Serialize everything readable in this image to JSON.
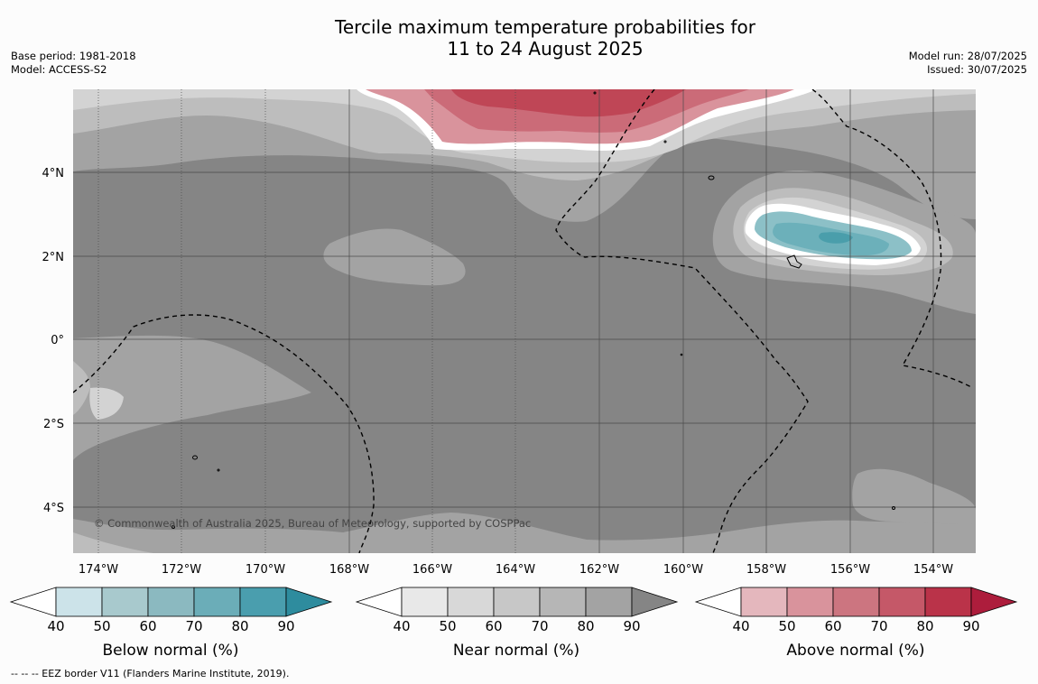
{
  "header": {
    "title_line1": "Tercile maximum temperature probabilities for",
    "title_line2": "11 to 24 August 2025",
    "base_period": "Base period: 1981-2018",
    "model": "Model: ACCESS-S2",
    "model_run": "Model run: 28/07/2025",
    "issued": "Issued: 30/07/2025"
  },
  "map": {
    "lat_labels": [
      "4°N",
      "2°N",
      "0°",
      "2°S",
      "4°S"
    ],
    "lon_labels": [
      "174°W",
      "172°W",
      "170°W",
      "168°W",
      "166°W",
      "164°W",
      "162°W",
      "160°W",
      "158°W",
      "156°W",
      "154°W"
    ],
    "copyright": "© Commonwealth of Australia 2025, Bureau of Meteorology, supported by COSPPac",
    "colors": {
      "near_90": "#858585",
      "near_80": "#a3a3a3",
      "near_70": "#bdbdbd",
      "near_60": "#d3d3d3",
      "above_50": "#d9939c",
      "above_60": "#cb6b78",
      "above_70": "#bf4656",
      "below_60": "#8cc0c7",
      "below_70": "#6cb0ba",
      "below_80": "#4a9eab"
    }
  },
  "legends": [
    {
      "label": "Below normal (%)",
      "ticks": [
        "40",
        "50",
        "60",
        "70",
        "80",
        "90"
      ],
      "colors": [
        "#cce3e9",
        "#a8c9cd",
        "#8bb9c0",
        "#6badb8",
        "#4a9eae",
        "#2e8c9e"
      ]
    },
    {
      "label": "Near normal (%)",
      "ticks": [
        "40",
        "50",
        "60",
        "70",
        "80",
        "90"
      ],
      "colors": [
        "#e8e8e8",
        "#d8d8d8",
        "#c7c7c7",
        "#b6b6b6",
        "#a3a3a3",
        "#858585"
      ]
    },
    {
      "label": "Above normal (%)",
      "ticks": [
        "40",
        "50",
        "60",
        "70",
        "80",
        "90"
      ],
      "colors": [
        "#e4b7bd",
        "#d9939c",
        "#cc7580",
        "#c55868",
        "#ba3349",
        "#ad1d3c"
      ]
    }
  ],
  "footnote": "--  --  -- EEZ border V11 (Flanders Marine Institute, 2019)."
}
